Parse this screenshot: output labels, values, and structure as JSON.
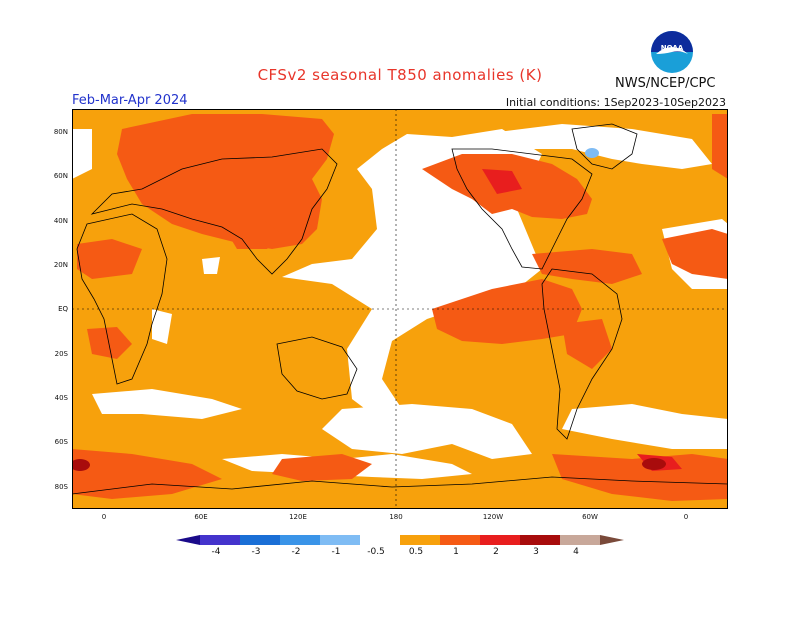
{
  "title": "CFSv2 seasonal T850 anomalies (K)",
  "agency": "NWS/NCEP/CPC",
  "logo_text": "NOAA",
  "season": "Feb-Mar-Apr 2024",
  "initial_conditions": "Initial conditions: 1Sep2023-10Sep2023",
  "lat_labels": [
    "80N",
    "60N",
    "40N",
    "20N",
    "EQ",
    "20S",
    "40S",
    "60S",
    "80S"
  ],
  "lon_labels": [
    "0",
    "60E",
    "120E",
    "180",
    "120W",
    "60W",
    "0"
  ],
  "legend": {
    "ticks": [
      "-4",
      "-3",
      "-2",
      "-1",
      "-0.5",
      "0.5",
      "1",
      "2",
      "3",
      "4"
    ],
    "colors": [
      "#1a0a8a",
      "#4433cc",
      "#1a6fd6",
      "#3a94e8",
      "#7fbcf4",
      "#ffffff",
      "#f7a10c",
      "#f55a14",
      "#e81e1e",
      "#a80c0c",
      "#c8a89a",
      "#7a4a3a"
    ]
  },
  "map_colors": {
    "neutral": "#ffffff",
    "warm_05_1": "#f7a10c",
    "warm_1_2": "#f55a14",
    "warm_2_3": "#e81e1e",
    "warm_3_4": "#a80c0c",
    "cool_05_1": "#7fbcf4",
    "coastline": "#000000"
  }
}
